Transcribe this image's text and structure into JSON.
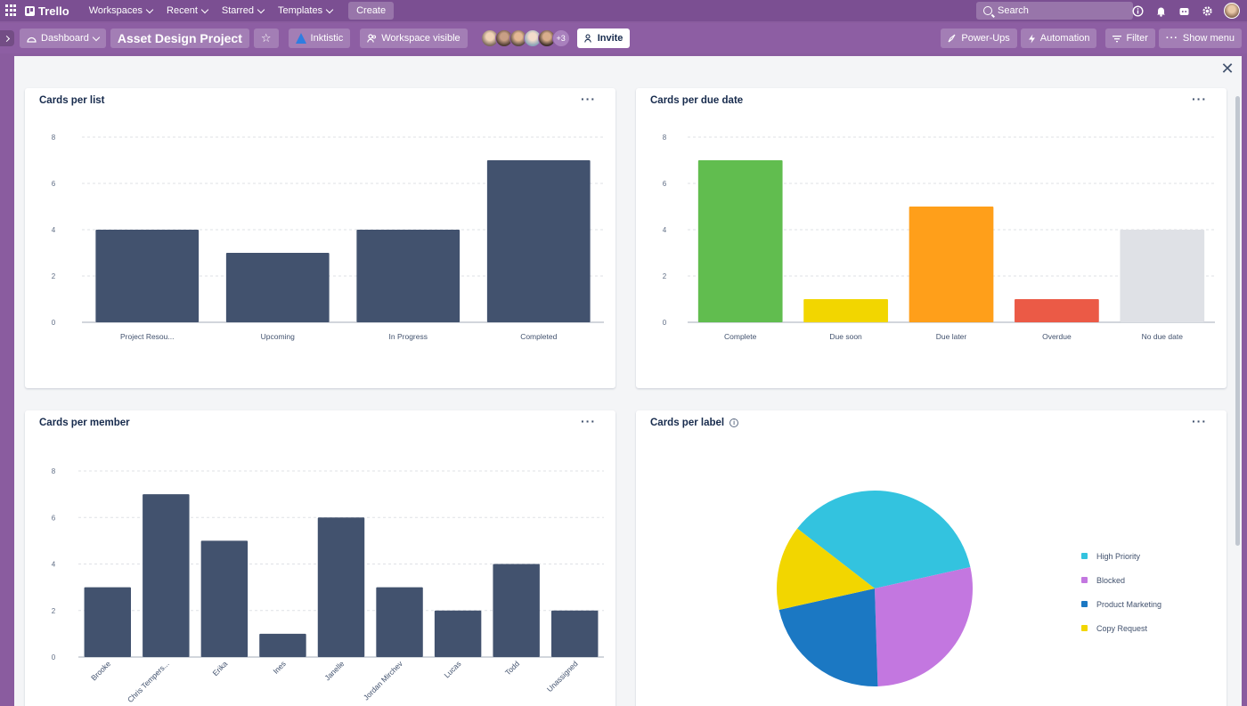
{
  "topnav": {
    "brand": "Trello",
    "items": [
      "Workspaces",
      "Recent",
      "Starred",
      "Templates"
    ],
    "create_label": "Create",
    "search_placeholder": "Search"
  },
  "boardbar": {
    "view_label": "Dashboard",
    "board_title": "Asset Design Project",
    "workspace_name": "Inktistic",
    "visibility_label": "Workspace visible",
    "members_more": "+3",
    "invite_label": "Invite",
    "powerups_label": "Power-Ups",
    "automation_label": "Automation",
    "filter_label": "Filter",
    "show_menu_label": "Show menu"
  },
  "cards": {
    "per_list_title": "Cards per list",
    "per_due_title": "Cards per due date",
    "per_member_title": "Cards per member",
    "per_label_title": "Cards per label"
  },
  "chart_data": [
    {
      "type": "bar",
      "categories": [
        "Project Resou...",
        "Upcoming",
        "In Progress",
        "Completed"
      ],
      "values": [
        4,
        3,
        4,
        7
      ],
      "ylim": [
        0,
        8
      ],
      "yticks": [
        0,
        2,
        4,
        6,
        8
      ],
      "colors": [
        "#42526e"
      ]
    },
    {
      "type": "bar",
      "categories": [
        "Complete",
        "Due soon",
        "Due later",
        "Overdue",
        "No due date"
      ],
      "values": [
        7,
        1,
        5,
        1,
        4
      ],
      "ylim": [
        0,
        8
      ],
      "yticks": [
        0,
        2,
        4,
        6,
        8
      ],
      "colors": [
        "#61bd4f",
        "#f2d600",
        "#ff9f1a",
        "#eb5a46",
        "#dfe1e6"
      ]
    },
    {
      "type": "bar",
      "categories": [
        "Brooke",
        "Chris Tempers...",
        "Erika",
        "Ines",
        "Janelle",
        "Jordan Mirchev",
        "Lucas",
        "Todd",
        "Unassigned"
      ],
      "values": [
        3,
        7,
        5,
        1,
        6,
        3,
        2,
        4,
        2
      ],
      "ylim": [
        0,
        8
      ],
      "yticks": [
        0,
        2,
        4,
        6,
        8
      ],
      "colors": [
        "#42526e"
      ]
    },
    {
      "type": "pie",
      "labels": [
        "High Priority",
        "Blocked",
        "Product Marketing",
        "Copy Request"
      ],
      "values": [
        36,
        28,
        22,
        14
      ],
      "colors": [
        "#33c3df",
        "#c377e0",
        "#1b78c3",
        "#f2d600"
      ]
    }
  ]
}
